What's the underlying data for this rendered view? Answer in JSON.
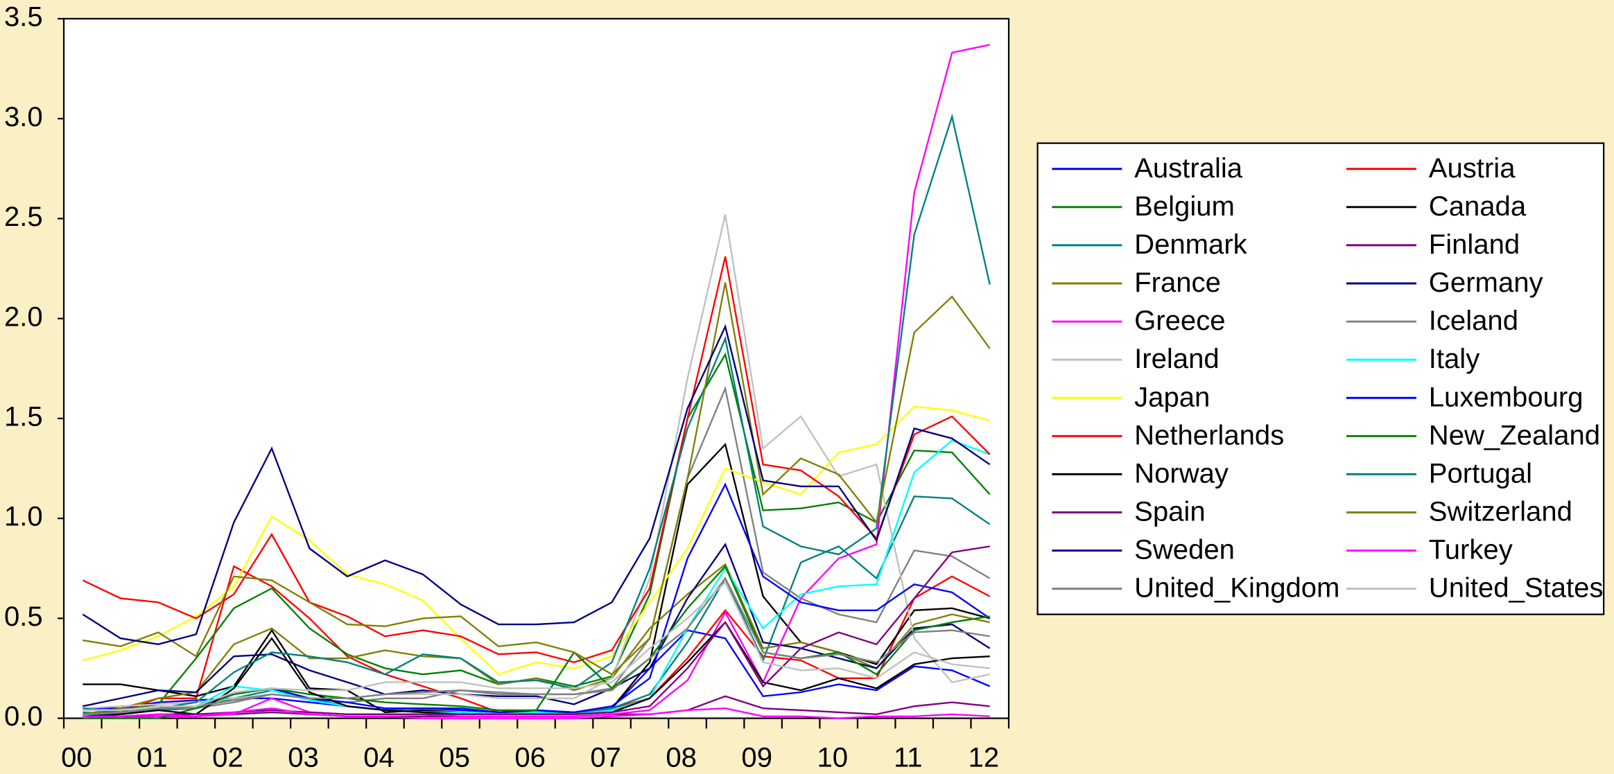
{
  "chart_data": {
    "type": "line",
    "categories": [
      "00",
      null,
      "01",
      null,
      "02",
      null,
      "03",
      null,
      "04",
      null,
      "05",
      null,
      "06",
      null,
      "07",
      null,
      "08",
      null,
      "09",
      null,
      "10",
      null,
      "11",
      null,
      "12"
    ],
    "ylim": [
      0,
      3.5
    ],
    "yticks": [
      {
        "value": 0,
        "label": "0.0"
      },
      {
        "value": 0.5,
        "label": "0.5"
      },
      {
        "value": 1,
        "label": "1.0"
      },
      {
        "value": 1.5,
        "label": "1.5"
      },
      {
        "value": 2,
        "label": "2.0"
      },
      {
        "value": 2.5,
        "label": "2.5"
      },
      {
        "value": 3,
        "label": "3.0"
      },
      {
        "value": 3.5,
        "label": "3.5"
      }
    ],
    "grid": false,
    "legend": "right",
    "series": [
      {
        "name": "Australia",
        "color": "#0000ff",
        "values": [
          0.05,
          0.05,
          0.08,
          0.09,
          0.1,
          0.1,
          0.08,
          0.06,
          0.04,
          0.05,
          0.04,
          0.03,
          0.04,
          0.03,
          0.05,
          0.25,
          0.44,
          0.4,
          0.11,
          0.13,
          0.17,
          0.14,
          0.26,
          0.24,
          0.16
        ]
      },
      {
        "name": "Austria",
        "color": "#ff0000",
        "values": [
          0.02,
          0.03,
          0.1,
          0.1,
          0.76,
          0.66,
          0.5,
          0.31,
          0.22,
          0.16,
          0.1,
          0.03,
          0.03,
          0.02,
          0.05,
          0.1,
          0.3,
          0.54,
          0.31,
          0.29,
          0.2,
          0.2,
          0.6,
          0.71,
          0.61
        ]
      },
      {
        "name": "Belgium",
        "color": "#008000",
        "values": [
          0.02,
          0.04,
          0.07,
          0.3,
          0.55,
          0.65,
          0.45,
          0.32,
          0.25,
          0.22,
          0.24,
          0.17,
          0.2,
          0.16,
          0.21,
          0.62,
          1.5,
          1.82,
          1.04,
          1.05,
          1.08,
          0.98,
          1.34,
          1.33,
          1.12
        ]
      },
      {
        "name": "Canada",
        "color": "#000000",
        "values": [
          0.17,
          0.17,
          0.14,
          0.11,
          0.16,
          0.44,
          0.15,
          0.14,
          0.03,
          0.04,
          0.03,
          0.02,
          0.03,
          0.03,
          0.05,
          0.28,
          1.17,
          1.37,
          0.61,
          0.38,
          0.33,
          0.27,
          0.54,
          0.55,
          0.5
        ]
      },
      {
        "name": "Denmark",
        "color": "#008080",
        "values": [
          0.03,
          0.02,
          0.04,
          0.05,
          0.1,
          0.14,
          0.1,
          0.06,
          0.04,
          0.05,
          0.05,
          0.03,
          0.04,
          0.03,
          0.05,
          0.12,
          0.38,
          0.7,
          0.29,
          0.78,
          0.86,
          0.7,
          1.11,
          1.1,
          0.97
        ]
      },
      {
        "name": "Finland",
        "color": "#800080",
        "values": [
          0.01,
          0.01,
          0.01,
          0.01,
          0.02,
          0.03,
          0.02,
          0.01,
          0.01,
          0.01,
          0.01,
          0.01,
          0.01,
          0.01,
          0.02,
          0.02,
          0.04,
          0.11,
          0.05,
          0.04,
          0.03,
          0.02,
          0.06,
          0.08,
          0.06
        ]
      },
      {
        "name": "France",
        "color": "#808000",
        "values": [
          0.02,
          0.05,
          0.1,
          0.13,
          0.37,
          0.45,
          0.3,
          0.3,
          0.34,
          0.31,
          0.3,
          0.17,
          0.2,
          0.14,
          0.2,
          0.45,
          0.62,
          0.77,
          0.35,
          0.38,
          0.33,
          0.25,
          0.47,
          0.52,
          0.48
        ]
      },
      {
        "name": "Germany",
        "color": "#000080",
        "values": [
          0.06,
          0.1,
          0.14,
          0.13,
          0.31,
          0.32,
          0.24,
          0.18,
          0.12,
          0.14,
          0.12,
          0.11,
          0.11,
          0.07,
          0.15,
          0.25,
          0.6,
          0.87,
          0.38,
          0.35,
          0.3,
          0.25,
          0.45,
          0.47,
          0.35
        ]
      },
      {
        "name": "Greece",
        "color": "#ff00ff",
        "values": [
          0.01,
          0.0,
          0.01,
          0.01,
          0.02,
          0.1,
          0.03,
          0.02,
          0.02,
          0.02,
          0.01,
          0.01,
          0.01,
          0.01,
          0.02,
          0.04,
          0.19,
          0.53,
          0.18,
          0.6,
          0.8,
          0.87,
          2.63,
          3.33,
          3.37
        ]
      },
      {
        "name": "Iceland",
        "color": "#808080",
        "values": [
          0.02,
          0.03,
          0.05,
          0.05,
          0.08,
          0.12,
          0.1,
          0.08,
          0.1,
          0.1,
          0.14,
          0.13,
          0.12,
          0.12,
          0.15,
          0.4,
          1.2,
          1.65,
          0.73,
          0.6,
          0.52,
          0.48,
          0.84,
          0.81,
          0.7
        ]
      },
      {
        "name": "Ireland",
        "color": "#c0c0c0",
        "values": [
          0.05,
          0.06,
          0.07,
          0.08,
          0.1,
          0.12,
          0.1,
          0.1,
          0.12,
          0.12,
          0.12,
          0.1,
          0.1,
          0.1,
          0.2,
          0.7,
          1.7,
          2.52,
          1.35,
          1.51,
          1.21,
          1.27,
          0.4,
          0.18,
          0.22
        ]
      },
      {
        "name": "Italy",
        "color": "#00ffff",
        "values": [
          0.02,
          0.02,
          0.05,
          0.06,
          0.16,
          0.14,
          0.09,
          0.06,
          0.04,
          0.03,
          0.03,
          0.02,
          0.03,
          0.02,
          0.04,
          0.1,
          0.45,
          0.75,
          0.45,
          0.62,
          0.66,
          0.67,
          1.23,
          1.39,
          1.32
        ]
      },
      {
        "name": "Japan",
        "color": "#ffff00",
        "values": [
          0.29,
          0.34,
          0.41,
          0.51,
          0.66,
          1.01,
          0.89,
          0.72,
          0.67,
          0.59,
          0.4,
          0.22,
          0.28,
          0.25,
          0.31,
          0.58,
          0.85,
          1.25,
          1.18,
          1.12,
          1.33,
          1.37,
          1.56,
          1.54,
          1.49
        ]
      },
      {
        "name": "Luxembourg",
        "color": "#0000ff",
        "values": [
          0.02,
          0.03,
          0.05,
          0.06,
          0.12,
          0.15,
          0.1,
          0.08,
          0.05,
          0.05,
          0.05,
          0.03,
          0.04,
          0.03,
          0.06,
          0.2,
          0.8,
          1.17,
          0.71,
          0.58,
          0.54,
          0.54,
          0.67,
          0.63,
          0.5
        ]
      },
      {
        "name": "Netherlands",
        "color": "#ff0000",
        "values": [
          0.69,
          0.6,
          0.58,
          0.5,
          0.62,
          0.92,
          0.58,
          0.51,
          0.41,
          0.44,
          0.41,
          0.32,
          0.33,
          0.28,
          0.34,
          0.65,
          1.5,
          2.31,
          1.27,
          1.24,
          1.11,
          0.9,
          1.42,
          1.51,
          1.32
        ]
      },
      {
        "name": "New_Zealand",
        "color": "#008000",
        "values": [
          0.0,
          0.0,
          0.0,
          0.05,
          0.12,
          0.15,
          0.12,
          0.1,
          0.08,
          0.07,
          0.06,
          0.04,
          0.04,
          0.33,
          0.15,
          0.3,
          0.55,
          0.76,
          0.33,
          0.3,
          0.33,
          0.22,
          0.44,
          0.48,
          0.51
        ]
      },
      {
        "name": "Norway",
        "color": "#000000",
        "values": [
          0.01,
          0.02,
          0.04,
          0.02,
          0.15,
          0.4,
          0.13,
          0.06,
          0.04,
          0.03,
          0.02,
          0.02,
          0.02,
          0.02,
          0.03,
          0.1,
          0.28,
          0.48,
          0.18,
          0.14,
          0.2,
          0.15,
          0.27,
          0.3,
          0.31
        ]
      },
      {
        "name": "Portugal",
        "color": "#008080",
        "values": [
          0.05,
          0.03,
          0.05,
          0.08,
          0.23,
          0.33,
          0.31,
          0.28,
          0.22,
          0.32,
          0.3,
          0.18,
          0.19,
          0.15,
          0.28,
          0.75,
          1.45,
          1.9,
          0.96,
          0.86,
          0.82,
          0.95,
          2.42,
          3.01,
          2.17
        ]
      },
      {
        "name": "Spain",
        "color": "#800080",
        "values": [
          0.01,
          0.01,
          0.02,
          0.02,
          0.03,
          0.04,
          0.03,
          0.02,
          0.02,
          0.02,
          0.02,
          0.02,
          0.02,
          0.02,
          0.03,
          0.06,
          0.25,
          0.48,
          0.16,
          0.35,
          0.43,
          0.37,
          0.6,
          0.83,
          0.86
        ]
      },
      {
        "name": "Switzerland",
        "color": "#808000",
        "values": [
          0.39,
          0.36,
          0.43,
          0.31,
          0.71,
          0.69,
          0.58,
          0.47,
          0.46,
          0.5,
          0.51,
          0.36,
          0.38,
          0.33,
          0.22,
          0.4,
          1.2,
          2.18,
          1.12,
          1.3,
          1.22,
          0.98,
          1.93,
          2.11,
          1.85
        ]
      },
      {
        "name": "Sweden",
        "color": "#000080",
        "values": [
          0.52,
          0.4,
          0.37,
          0.42,
          0.98,
          1.35,
          0.85,
          0.71,
          0.79,
          0.72,
          0.57,
          0.47,
          0.47,
          0.48,
          0.58,
          0.9,
          1.55,
          1.96,
          1.19,
          1.16,
          1.16,
          0.89,
          1.45,
          1.4,
          1.27
        ]
      },
      {
        "name": "Turkey",
        "color": "#ff00ff",
        "values": [
          0.01,
          0.01,
          0.02,
          0.01,
          0.03,
          0.05,
          0.02,
          0.01,
          0.01,
          0.0,
          0.0,
          0.0,
          0.0,
          0.0,
          0.01,
          0.02,
          0.04,
          0.05,
          0.01,
          0.01,
          0.0,
          0.01,
          0.01,
          0.02,
          0.01
        ]
      },
      {
        "name": "United_Kingdom",
        "color": "#808080",
        "values": [
          0.02,
          0.03,
          0.05,
          0.06,
          0.09,
          0.12,
          0.1,
          0.1,
          0.12,
          0.13,
          0.14,
          0.12,
          0.12,
          0.12,
          0.14,
          0.3,
          0.45,
          0.7,
          0.33,
          0.3,
          0.32,
          0.28,
          0.43,
          0.44,
          0.41
        ]
      },
      {
        "name": "United_States",
        "color": "#c0c0c0",
        "values": [
          0.04,
          0.04,
          0.06,
          0.06,
          0.13,
          0.15,
          0.14,
          0.14,
          0.18,
          0.18,
          0.18,
          0.15,
          0.15,
          0.15,
          0.18,
          0.35,
          0.5,
          0.68,
          0.28,
          0.24,
          0.25,
          0.2,
          0.33,
          0.27,
          0.25
        ]
      }
    ]
  }
}
